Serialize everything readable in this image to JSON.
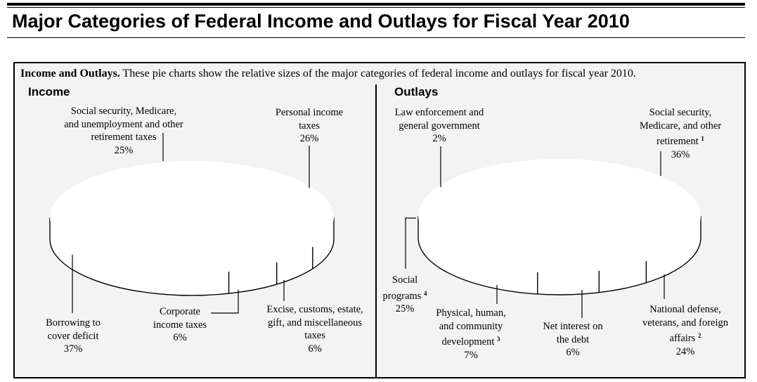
{
  "page": {
    "title": "Major Categories of Federal Income and Outlays for Fiscal Year 2010",
    "caption_bold": "Income and Outlays.",
    "caption_text": " These pie charts show the relative sizes of the major categories of federal income and outlays for fiscal year 2010."
  },
  "colors": {
    "panel_background": "#f3f3f3",
    "slice_fill": "#ffffff",
    "stroke": "#000000"
  },
  "chart_data": [
    {
      "type": "pie",
      "title": "Income",
      "style": "3d-tilted",
      "slices": [
        {
          "label": "Personal income taxes",
          "value": 26,
          "value_label": "26%"
        },
        {
          "label": "Excise, customs, estate, gift, and miscellaneous taxes",
          "value": 6,
          "value_label": "6%"
        },
        {
          "label": "Corporate income taxes",
          "value": 6,
          "value_label": "6%"
        },
        {
          "label": "Borrowing to cover deficit",
          "value": 37,
          "value_label": "37%"
        },
        {
          "label": "Social security, Medicare, and unemployment and other retirement taxes",
          "value": 25,
          "value_label": "25%"
        }
      ],
      "label_lines": {
        "ssm": [
          "Social security, Medicare,",
          "and unemployment and other",
          "retirement taxes",
          "25%"
        ],
        "pit": [
          "Personal income",
          "taxes",
          "26%"
        ],
        "borrow": [
          "Borrowing to",
          "cover deficit",
          "37%"
        ],
        "corp": [
          "Corporate",
          "income taxes",
          "6%"
        ],
        "excise": [
          "Excise, customs, estate,",
          "gift, and miscellaneous",
          "taxes",
          "6%"
        ]
      }
    },
    {
      "type": "pie",
      "title": "Outlays",
      "style": "3d-tilted",
      "slices": [
        {
          "label": "Social security, Medicare, and other retirement",
          "footnote": "1",
          "value": 36,
          "value_label": "36%"
        },
        {
          "label": "National defense, veterans, and foreign affairs",
          "footnote": "2",
          "value": 24,
          "value_label": "24%"
        },
        {
          "label": "Net interest on the debt",
          "value": 6,
          "value_label": "6%"
        },
        {
          "label": "Physical, human, and community development",
          "footnote": "3",
          "value": 7,
          "value_label": "7%"
        },
        {
          "label": "Social programs",
          "footnote": "4",
          "value": 25,
          "value_label": "25%"
        },
        {
          "label": "Law enforcement and general government",
          "value": 2,
          "value_label": "2%"
        }
      ],
      "label_lines": {
        "law": [
          "Law enforcement and",
          "general government",
          "2%"
        ],
        "ssm": [
          "Social security,",
          "Medicare, and other",
          "retirement",
          "36%"
        ],
        "social": [
          "Social",
          "programs",
          "25%"
        ],
        "phys": [
          "Physical, human,",
          "and community",
          "development",
          "7%"
        ],
        "interest": [
          "Net interest on",
          "the debt",
          "6%"
        ],
        "defense": [
          "National defense,",
          "veterans, and foreign",
          "affairs",
          "24%"
        ]
      },
      "footnotes": {
        "ssm": "1",
        "defense": "2",
        "phys": "3",
        "social": "4"
      }
    }
  ]
}
